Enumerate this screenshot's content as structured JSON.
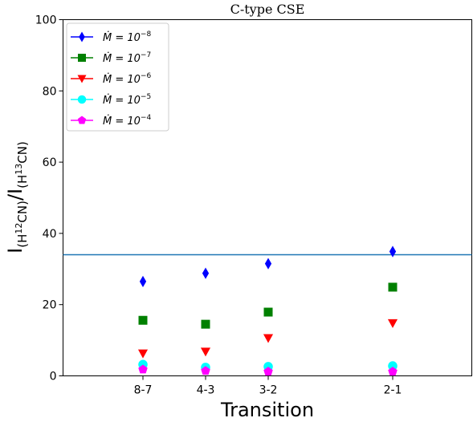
{
  "chart_data": {
    "type": "scatter",
    "title": "C-type CSE",
    "xlabel": "Transition",
    "ylabel": {
      "base": "I",
      "num_open": "(H",
      "num_sup": "12",
      "num_close": "CN)",
      "slash": "/I",
      "den_open": "(H",
      "den_sup": "13",
      "den_close": "CN)"
    },
    "categories": [
      "8-7",
      "4-3",
      "3-2",
      "2-1"
    ],
    "ylim": [
      0,
      100
    ],
    "yticks": [
      "0",
      "20",
      "40",
      "60",
      "80",
      "100"
    ],
    "grid": false,
    "legend_position": "top-left",
    "hline": {
      "y": 34,
      "color": "#1f77b4"
    },
    "series": [
      {
        "legend_base": "Ṁ = 10",
        "legend_exp": "−8",
        "marker": "diamond",
        "color": "#0000ff",
        "values": [
          26.5,
          28.8,
          31.5,
          34.9
        ]
      },
      {
        "legend_base": "Ṁ = 10",
        "legend_exp": "−7",
        "marker": "square",
        "color": "#008000",
        "values": [
          15.6,
          14.5,
          17.9,
          24.9
        ]
      },
      {
        "legend_base": "Ṁ = 10",
        "legend_exp": "−6",
        "marker": "triangle-down",
        "color": "#ff0000",
        "values": [
          6.3,
          6.8,
          10.6,
          14.8
        ]
      },
      {
        "legend_base": "Ṁ = 10",
        "legend_exp": "−5",
        "marker": "circle",
        "color": "#00ffff",
        "values": [
          3.2,
          2.4,
          2.6,
          2.8
        ]
      },
      {
        "legend_base": "Ṁ = 10",
        "legend_exp": "−4",
        "marker": "pentagon",
        "color": "#ff00ff",
        "values": [
          1.8,
          1.4,
          1.2,
          1.2
        ]
      }
    ]
  }
}
